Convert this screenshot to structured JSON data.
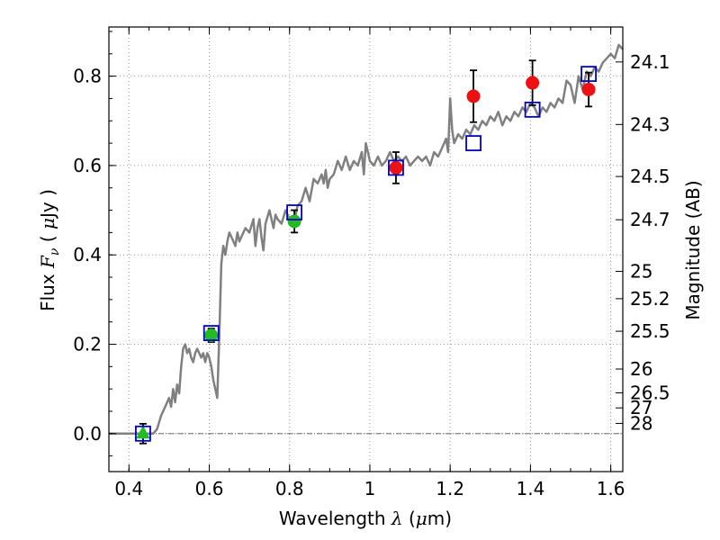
{
  "chart_data": {
    "type": "scatter",
    "xlabel": "Wavelength  λ (μm)",
    "ylabel": "Flux  F_ν  ( μJy )",
    "ylabel_parts": {
      "text1": "Flux  ",
      "math1": "F",
      "sub": "ν",
      "text2": "  ( ",
      "math2": "μ",
      "text3": "Jy )"
    },
    "xlabel_parts": {
      "text1": "Wavelength  ",
      "math1": "λ",
      "text2": " (",
      "math2": "μ",
      "text3": "m)"
    },
    "ylabel_right": "Magnitude (AB)",
    "xlim": [
      0.35,
      1.63
    ],
    "ylim": [
      -0.085,
      0.91
    ],
    "grid": true,
    "x_ticks": [
      {
        "value": 0.4,
        "label": "0.4"
      },
      {
        "value": 0.6,
        "label": "0.6"
      },
      {
        "value": 0.8,
        "label": "0.8"
      },
      {
        "value": 1.0,
        "label": "1"
      },
      {
        "value": 1.2,
        "label": "1.2"
      },
      {
        "value": 1.4,
        "label": "1.4"
      },
      {
        "value": 1.6,
        "label": "1.6"
      }
    ],
    "y_ticks": [
      {
        "value": 0.0,
        "label": "0.0"
      },
      {
        "value": 0.2,
        "label": "0.2"
      },
      {
        "value": 0.4,
        "label": "0.4"
      },
      {
        "value": 0.6,
        "label": "0.6"
      },
      {
        "value": 0.8,
        "label": "0.8"
      }
    ],
    "right_ticks": [
      {
        "mag": 24.1,
        "label": "24.1"
      },
      {
        "mag": 24.3,
        "label": "24.3"
      },
      {
        "mag": 24.5,
        "label": "24.5"
      },
      {
        "mag": 24.7,
        "label": "24.7"
      },
      {
        "mag": 25.0,
        "label": "25"
      },
      {
        "mag": 25.2,
        "label": "25.2"
      },
      {
        "mag": 25.5,
        "label": "25.5"
      },
      {
        "mag": 26.0,
        "label": "26"
      },
      {
        "mag": 26.5,
        "label": "26.5"
      },
      {
        "mag": 27.0,
        "label": "27"
      },
      {
        "mag": 28.0,
        "label": "28"
      }
    ],
    "zero_line": 0.0,
    "colors": {
      "template": "#808080",
      "model_box": "#0000cc",
      "green": "#22bb22",
      "red": "#ee1111",
      "errorbar": "#000000",
      "grid": "#999999"
    },
    "template_spectrum": {
      "x": [
        0.35,
        0.36,
        0.37,
        0.38,
        0.39,
        0.4,
        0.41,
        0.42,
        0.43,
        0.44,
        0.45,
        0.46,
        0.47,
        0.48,
        0.49,
        0.5,
        0.505,
        0.51,
        0.515,
        0.52,
        0.525,
        0.53,
        0.535,
        0.54,
        0.545,
        0.55,
        0.555,
        0.56,
        0.565,
        0.57,
        0.575,
        0.58,
        0.585,
        0.59,
        0.595,
        0.6,
        0.605,
        0.61,
        0.615,
        0.62,
        0.625,
        0.63,
        0.635,
        0.64,
        0.645,
        0.65,
        0.655,
        0.66,
        0.665,
        0.67,
        0.675,
        0.68,
        0.69,
        0.7,
        0.71,
        0.715,
        0.72,
        0.725,
        0.73,
        0.735,
        0.74,
        0.75,
        0.76,
        0.765,
        0.77,
        0.78,
        0.79,
        0.8,
        0.81,
        0.82,
        0.83,
        0.84,
        0.85,
        0.86,
        0.87,
        0.88,
        0.885,
        0.89,
        0.895,
        0.9,
        0.91,
        0.92,
        0.93,
        0.94,
        0.95,
        0.96,
        0.97,
        0.98,
        0.985,
        0.99,
        1.0,
        1.01,
        1.02,
        1.03,
        1.04,
        1.05,
        1.06,
        1.07,
        1.08,
        1.09,
        1.1,
        1.11,
        1.12,
        1.13,
        1.14,
        1.15,
        1.16,
        1.17,
        1.18,
        1.19,
        1.195,
        1.2,
        1.205,
        1.21,
        1.22,
        1.23,
        1.24,
        1.25,
        1.26,
        1.27,
        1.28,
        1.29,
        1.3,
        1.31,
        1.32,
        1.33,
        1.34,
        1.35,
        1.36,
        1.37,
        1.38,
        1.39,
        1.4,
        1.41,
        1.42,
        1.43,
        1.44,
        1.45,
        1.46,
        1.47,
        1.48,
        1.49,
        1.5,
        1.51,
        1.52,
        1.53,
        1.54,
        1.55,
        1.56,
        1.57,
        1.58,
        1.59,
        1.6,
        1.61,
        1.62,
        1.63
      ],
      "y": [
        0.0,
        0.0,
        0.0,
        0.0,
        0.0,
        0.0,
        0.0,
        0.0,
        0.0,
        0.0,
        0.0,
        0.0,
        0.01,
        0.04,
        0.06,
        0.08,
        0.06,
        0.1,
        0.07,
        0.11,
        0.09,
        0.15,
        0.19,
        0.2,
        0.18,
        0.19,
        0.17,
        0.16,
        0.18,
        0.19,
        0.18,
        0.17,
        0.18,
        0.16,
        0.18,
        0.17,
        0.15,
        0.12,
        0.1,
        0.08,
        0.22,
        0.38,
        0.42,
        0.4,
        0.43,
        0.45,
        0.44,
        0.43,
        0.42,
        0.45,
        0.43,
        0.44,
        0.46,
        0.45,
        0.48,
        0.42,
        0.46,
        0.48,
        0.44,
        0.41,
        0.47,
        0.5,
        0.46,
        0.49,
        0.48,
        0.47,
        0.5,
        0.48,
        0.47,
        0.51,
        0.52,
        0.55,
        0.52,
        0.57,
        0.56,
        0.58,
        0.56,
        0.59,
        0.55,
        0.57,
        0.58,
        0.61,
        0.59,
        0.62,
        0.59,
        0.61,
        0.6,
        0.63,
        0.58,
        0.65,
        0.61,
        0.6,
        0.62,
        0.6,
        0.61,
        0.63,
        0.61,
        0.62,
        0.61,
        0.62,
        0.6,
        0.61,
        0.62,
        0.61,
        0.62,
        0.6,
        0.63,
        0.62,
        0.64,
        0.66,
        0.63,
        0.75,
        0.68,
        0.65,
        0.67,
        0.66,
        0.68,
        0.67,
        0.69,
        0.68,
        0.7,
        0.69,
        0.71,
        0.7,
        0.72,
        0.69,
        0.71,
        0.7,
        0.72,
        0.71,
        0.73,
        0.72,
        0.74,
        0.73,
        0.71,
        0.73,
        0.72,
        0.74,
        0.73,
        0.75,
        0.74,
        0.79,
        0.78,
        0.74,
        0.8,
        0.77,
        0.81,
        0.8,
        0.82,
        0.81,
        0.83,
        0.84,
        0.85,
        0.84,
        0.87,
        0.86
      ]
    },
    "model_points": [
      {
        "x": 0.435,
        "y": 0.0
      },
      {
        "x": 0.605,
        "y": 0.225
      },
      {
        "x": 0.812,
        "y": 0.495
      },
      {
        "x": 1.065,
        "y": 0.595
      },
      {
        "x": 1.258,
        "y": 0.65
      },
      {
        "x": 1.405,
        "y": 0.725
      },
      {
        "x": 1.545,
        "y": 0.805
      }
    ],
    "observed_points": [
      {
        "x": 0.435,
        "y": 0.0,
        "err": 0.022,
        "marker": "triangle",
        "color": "green"
      },
      {
        "x": 0.605,
        "y": 0.22,
        "err": 0.015,
        "marker": "circle",
        "color": "green"
      },
      {
        "x": 0.812,
        "y": 0.475,
        "err": 0.025,
        "marker": "circle",
        "color": "green"
      },
      {
        "x": 1.065,
        "y": 0.595,
        "err": 0.035,
        "marker": "circle",
        "color": "red"
      },
      {
        "x": 1.258,
        "y": 0.755,
        "err": 0.058,
        "marker": "circle",
        "color": "red"
      },
      {
        "x": 1.405,
        "y": 0.785,
        "err": 0.05,
        "marker": "circle",
        "color": "red"
      },
      {
        "x": 1.545,
        "y": 0.77,
        "err": 0.038,
        "marker": "circle",
        "color": "red"
      }
    ]
  }
}
